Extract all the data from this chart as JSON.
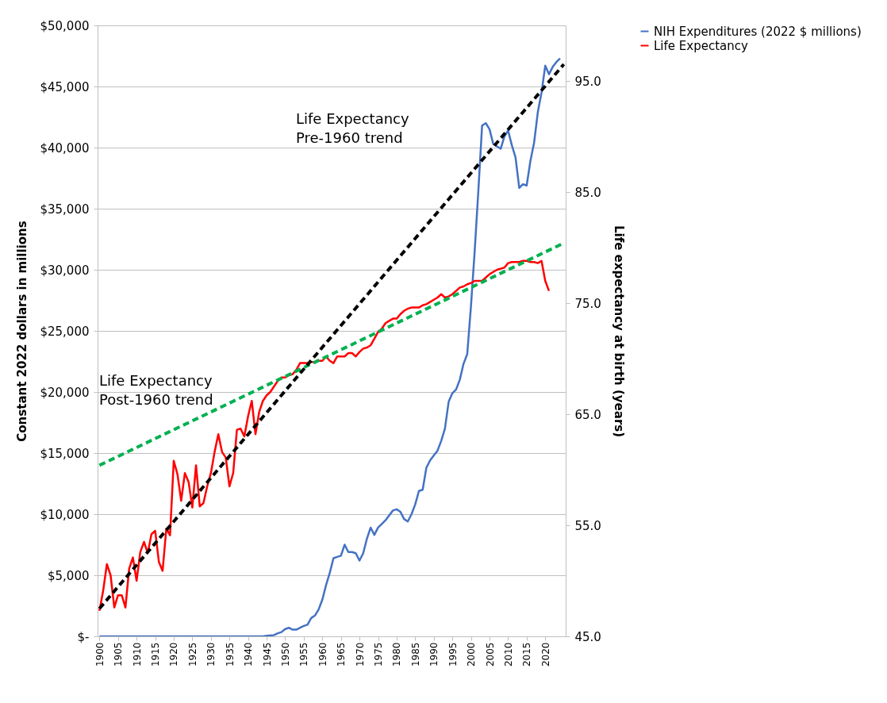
{
  "chart_data": {
    "type": "line",
    "ylabel": "Constant 2022 dollars in millions",
    "y2label": "Life expectancy at birth (years)",
    "xlim": [
      1899.5,
      2025.5
    ],
    "xticks": [
      1900,
      1905,
      1910,
      1915,
      1920,
      1925,
      1930,
      1935,
      1940,
      1945,
      1950,
      1955,
      1960,
      1965,
      1970,
      1975,
      1980,
      1985,
      1990,
      1995,
      2000,
      2005,
      2010,
      2015,
      2020
    ],
    "ylim": [
      0,
      50000
    ],
    "yticks": [
      {
        "value": 0,
        "label": "$-"
      },
      {
        "value": 5000,
        "label": "$5,000"
      },
      {
        "value": 10000,
        "label": "$10,000"
      },
      {
        "value": 15000,
        "label": "$15,000"
      },
      {
        "value": 20000,
        "label": "$20,000"
      },
      {
        "value": 25000,
        "label": "$25,000"
      },
      {
        "value": 30000,
        "label": "$30,000"
      },
      {
        "value": 35000,
        "label": "$35,000"
      },
      {
        "value": 40000,
        "label": "$40,000"
      },
      {
        "value": 45000,
        "label": "$45,000"
      },
      {
        "value": 50000,
        "label": "$50,000"
      }
    ],
    "y2lim": [
      45,
      100
    ],
    "y2ticks": [
      {
        "value": 45,
        "label": "45.0"
      },
      {
        "value": 55,
        "label": "55.0"
      },
      {
        "value": 65,
        "label": "65.0"
      },
      {
        "value": 75,
        "label": "75.0"
      },
      {
        "value": 85,
        "label": "85.0"
      },
      {
        "value": 95,
        "label": "95.0"
      }
    ],
    "grid": "y",
    "legend": "right",
    "marker": "none",
    "annotations": [
      "Life Expectancy\nPre-1960 trend",
      "Life Expectancy\nPost-1960 trend"
    ],
    "series": [
      {
        "name": "NIH Expenditures (2022 $ millions)",
        "color": "#4472c4",
        "line_style": "solid",
        "x": [
          1900,
          1944,
          1945,
          1947,
          1948,
          1949,
          1950,
          1951,
          1952,
          1953,
          1954,
          1955,
          1956,
          1957,
          1958,
          1959,
          1960,
          1961,
          1962,
          1963,
          1964,
          1965,
          1966,
          1967,
          1968,
          1969,
          1970,
          1971,
          1972,
          1973,
          1974,
          1975,
          1976,
          1977,
          1978,
          1979,
          1980,
          1981,
          1982,
          1983,
          1984,
          1985,
          1986,
          1987,
          1988,
          1989,
          1990,
          1991,
          1992,
          1993,
          1994,
          1995,
          1996,
          1997,
          1998,
          1999,
          2000,
          2001,
          2002,
          2003,
          2004,
          2005,
          2006,
          2007,
          2008,
          2009,
          2010,
          2011,
          2012,
          2013,
          2014,
          2015,
          2016,
          2017,
          2018,
          2019,
          2020,
          2021,
          2022,
          2023,
          2024
        ],
        "values": [
          0,
          0,
          50,
          100,
          250,
          350,
          600,
          700,
          550,
          550,
          700,
          850,
          950,
          1500,
          1700,
          2200,
          3000,
          4200,
          5200,
          6400,
          6500,
          6600,
          7500,
          6900,
          6900,
          6800,
          6200,
          6800,
          8000,
          8900,
          8300,
          8900,
          9200,
          9500,
          9900,
          10300,
          10400,
          10200,
          9600,
          9400,
          10000,
          10800,
          11900,
          12000,
          13800,
          14400,
          14800,
          15200,
          16000,
          17000,
          19200,
          19900,
          20200,
          21000,
          22300,
          23100,
          27000,
          31500,
          36500,
          41800,
          42000,
          41500,
          40300,
          40100,
          39900,
          40900,
          41400,
          40200,
          39200,
          36700,
          37000,
          36900,
          38900,
          40400,
          42900,
          44500,
          46700,
          46000,
          46600,
          47000,
          47300
        ]
      },
      {
        "name": "Life Expectancy",
        "color": "#ff0000",
        "line_style": "solid",
        "axis": "y2",
        "x": [
          1900,
          1901,
          1902,
          1903,
          1904,
          1905,
          1906,
          1907,
          1908,
          1909,
          1910,
          1911,
          1912,
          1913,
          1914,
          1915,
          1916,
          1917,
          1918,
          1919,
          1920,
          1921,
          1922,
          1923,
          1924,
          1925,
          1926,
          1927,
          1928,
          1929,
          1930,
          1931,
          1932,
          1933,
          1934,
          1935,
          1936,
          1937,
          1938,
          1939,
          1940,
          1941,
          1942,
          1943,
          1944,
          1945,
          1946,
          1947,
          1948,
          1949,
          1950,
          1951,
          1952,
          1953,
          1954,
          1955,
          1956,
          1957,
          1958,
          1959,
          1960,
          1961,
          1962,
          1963,
          1964,
          1965,
          1966,
          1967,
          1968,
          1969,
          1970,
          1971,
          1972,
          1973,
          1974,
          1975,
          1976,
          1977,
          1978,
          1979,
          1980,
          1981,
          1982,
          1983,
          1984,
          1985,
          1986,
          1987,
          1988,
          1989,
          1990,
          1991,
          1992,
          1993,
          1994,
          1995,
          1996,
          1997,
          1998,
          1999,
          2000,
          2001,
          2002,
          2003,
          2004,
          2005,
          2006,
          2007,
          2008,
          2009,
          2010,
          2011,
          2012,
          2013,
          2014,
          2015,
          2016,
          2017,
          2018,
          2019,
          2020,
          2021
        ],
        "values": [
          47.3,
          49.1,
          51.5,
          50.5,
          47.6,
          48.7,
          48.7,
          47.6,
          51.1,
          52.1,
          50.0,
          52.6,
          53.5,
          52.5,
          54.2,
          54.5,
          51.7,
          50.9,
          54.7,
          54.1,
          60.8,
          59.6,
          57.2,
          59.7,
          58.9,
          56.6,
          60.4,
          56.7,
          57.0,
          58.5,
          59.7,
          61.6,
          63.2,
          61.6,
          61.1,
          58.5,
          59.7,
          63.6,
          63.7,
          63.0,
          64.8,
          66.2,
          63.2,
          65.2,
          66.2,
          66.7,
          67.0,
          67.5,
          68.0,
          68.3,
          68.3,
          68.5,
          68.6,
          69.0,
          69.6,
          69.6,
          69.6,
          69.7,
          69.7,
          69.8,
          69.8,
          70.2,
          69.8,
          69.6,
          70.2,
          70.2,
          70.2,
          70.5,
          70.5,
          70.2,
          70.6,
          70.9,
          71.0,
          71.2,
          71.8,
          72.4,
          72.7,
          73.2,
          73.4,
          73.6,
          73.6,
          74.0,
          74.3,
          74.5,
          74.6,
          74.6,
          74.6,
          74.8,
          74.9,
          75.1,
          75.3,
          75.5,
          75.8,
          75.5,
          75.6,
          75.8,
          76.1,
          76.4,
          76.5,
          76.7,
          76.8,
          77.0,
          77.0,
          77.0,
          77.3,
          77.6,
          77.8,
          78.0,
          78.1,
          78.2,
          78.6,
          78.7,
          78.7,
          78.7,
          78.8,
          78.8,
          78.7,
          78.7,
          78.6,
          78.8,
          77.0,
          76.1
        ]
      },
      {
        "color": "#00b050",
        "line_style": "dashed",
        "axis": "y2",
        "x": [
          1900,
          2025
        ],
        "values": [
          60.4,
          80.4
        ]
      },
      {
        "color": "#000000",
        "line_style": "dashed",
        "axis": "y2",
        "x": [
          1900,
          2025
        ],
        "values": [
          47.5,
          96.5
        ]
      }
    ]
  }
}
